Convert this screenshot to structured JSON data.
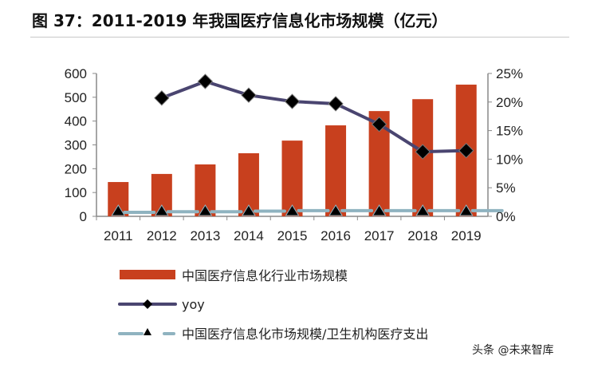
{
  "title": "图 37：2011-2019 年我国医疗信息化市场规模（亿元）",
  "watermark": "头条 @未来智库",
  "chart_data": {
    "type": "bar+line",
    "categories": [
      "2011",
      "2012",
      "2013",
      "2014",
      "2015",
      "2016",
      "2017",
      "2018",
      "2019"
    ],
    "left_axis": {
      "ylim": [
        0,
        600
      ],
      "ticks": [
        "0",
        "100",
        "200",
        "300",
        "400",
        "500",
        "600"
      ]
    },
    "right_axis": {
      "ylim": [
        0,
        25
      ],
      "ticks": [
        "0%",
        "5%",
        "10%",
        "15%",
        "20%",
        "25%"
      ]
    },
    "series": [
      {
        "name": "中国医疗信息化行业市场规模",
        "type": "bar",
        "axis": "left",
        "color": "#c8401e",
        "values": [
          144,
          178,
          218,
          265,
          318,
          382,
          442,
          492,
          553
        ]
      },
      {
        "name": "yoy",
        "type": "line",
        "axis": "right",
        "color": "#4a4570",
        "marker": "diamond",
        "values": [
          null,
          20.7,
          23.6,
          21.2,
          20.1,
          19.7,
          16.1,
          11.3,
          11.5
        ]
      },
      {
        "name": "中国医疗信息化市场规模/卫生机构医疗支出",
        "type": "line",
        "axis": "right",
        "color": "#8fb3c0",
        "marker": "triangle",
        "dash": true,
        "values": [
          0.7,
          0.8,
          0.8,
          0.9,
          1.0,
          1.0,
          1.0,
          1.0,
          1.0
        ]
      }
    ],
    "grid": false,
    "legend": "bottom"
  }
}
